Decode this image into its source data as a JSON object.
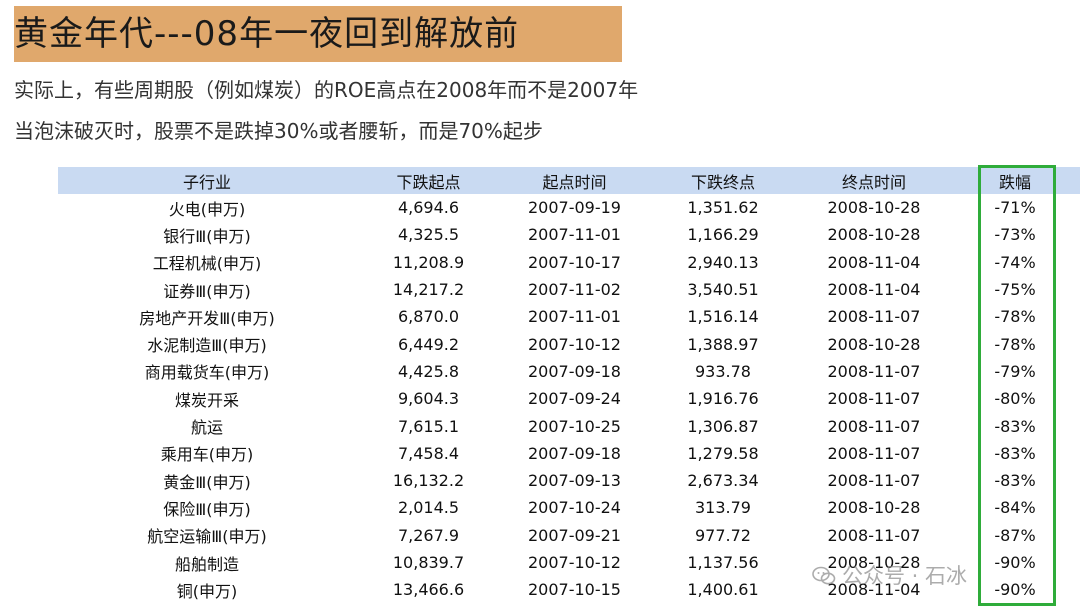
{
  "title": "黄金年代---08年一夜回到解放前",
  "subtitles": [
    "实际上，有些周期股（例如煤炭）的ROE高点在2008年而不是2007年",
    "当泡沫破灭时，股票不是跌掉30%或者腰斩，而是70%起步"
  ],
  "table": {
    "headers": [
      "子行业",
      "下跌起点",
      "起点时间",
      "下跌终点",
      "终点时间",
      "跌幅"
    ],
    "rows": [
      [
        "火电(申万)",
        "4,694.6",
        "2007-09-19",
        "1,351.62",
        "2008-10-28",
        "-71%"
      ],
      [
        "银行Ⅲ(申万)",
        "4,325.5",
        "2007-11-01",
        "1,166.29",
        "2008-10-28",
        "-73%"
      ],
      [
        "工程机械(申万)",
        "11,208.9",
        "2007-10-17",
        "2,940.13",
        "2008-11-04",
        "-74%"
      ],
      [
        "证券Ⅲ(申万)",
        "14,217.2",
        "2007-11-02",
        "3,540.51",
        "2008-11-04",
        "-75%"
      ],
      [
        "房地产开发Ⅲ(申万)",
        "6,870.0",
        "2007-11-01",
        "1,516.14",
        "2008-11-07",
        "-78%"
      ],
      [
        "水泥制造Ⅲ(申万)",
        "6,449.2",
        "2007-10-12",
        "1,388.97",
        "2008-10-28",
        "-78%"
      ],
      [
        "商用载货车(申万)",
        "4,425.8",
        "2007-09-18",
        "933.78",
        "2008-11-07",
        "-79%"
      ],
      [
        "煤炭开采",
        "9,604.3",
        "2007-09-24",
        "1,916.76",
        "2008-11-07",
        "-80%"
      ],
      [
        "航运",
        "7,615.1",
        "2007-10-25",
        "1,306.87",
        "2008-11-07",
        "-83%"
      ],
      [
        "乘用车(申万)",
        "7,458.4",
        "2007-09-18",
        "1,279.58",
        "2008-11-07",
        "-83%"
      ],
      [
        "黄金Ⅲ(申万)",
        "16,132.2",
        "2007-09-13",
        "2,673.34",
        "2008-11-07",
        "-83%"
      ],
      [
        "保险Ⅲ(申万)",
        "2,014.5",
        "2007-10-24",
        "313.79",
        "2008-10-28",
        "-84%"
      ],
      [
        "航空运输Ⅲ(申万)",
        "7,267.9",
        "2007-09-21",
        "977.72",
        "2008-11-07",
        "-87%"
      ],
      [
        "船舶制造",
        "10,839.7",
        "2007-10-12",
        "1,137.56",
        "2008-10-28",
        "-90%"
      ],
      [
        "铜(申万)",
        "13,466.6",
        "2007-10-15",
        "1,400.61",
        "2008-11-04",
        "-90%"
      ]
    ]
  },
  "watermark": "公众号 · 石冰",
  "colors": {
    "title_bg": "#e0a86c",
    "header_bg": "#c9daf2",
    "highlight_border": "#2fac3a"
  }
}
